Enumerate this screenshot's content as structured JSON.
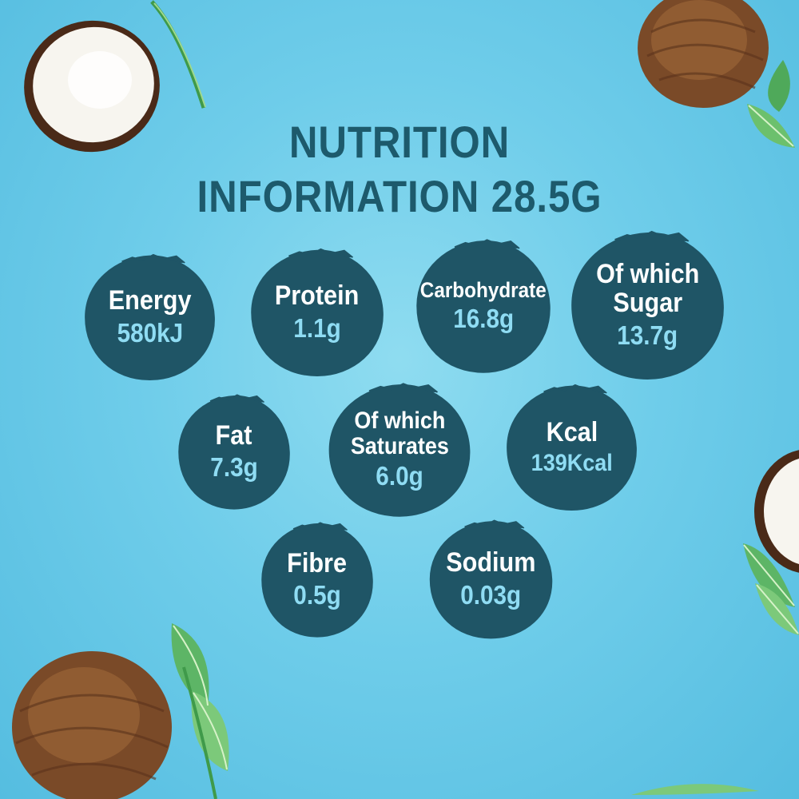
{
  "title": {
    "line1": "NUTRITION",
    "line2": "INFORMATION  28.5G"
  },
  "colors": {
    "background": "#6fcdea",
    "title": "#1d5a6c",
    "bubble": "#1f5566",
    "label": "#ffffff",
    "value": "#8fdcf3"
  },
  "nutrients": [
    {
      "label": "Energy",
      "value": "580kJ"
    },
    {
      "label": "Protein",
      "value": "1.1g"
    },
    {
      "label": "Carbohydrate",
      "value": "16.8g"
    },
    {
      "label": "Of which\nSugar",
      "value": "13.7g"
    },
    {
      "label": "Fat",
      "value": "7.3g"
    },
    {
      "label": "Of which\nSaturates",
      "value": "6.0g"
    },
    {
      "label": "Kcal",
      "value": "139Kcal"
    },
    {
      "label": "Fibre",
      "value": "0.5g"
    },
    {
      "label": "Sodium",
      "value": "0.03g"
    }
  ],
  "decorations": [
    "coconut-half-icon",
    "whole-coconut-icon",
    "leaf-icon"
  ]
}
